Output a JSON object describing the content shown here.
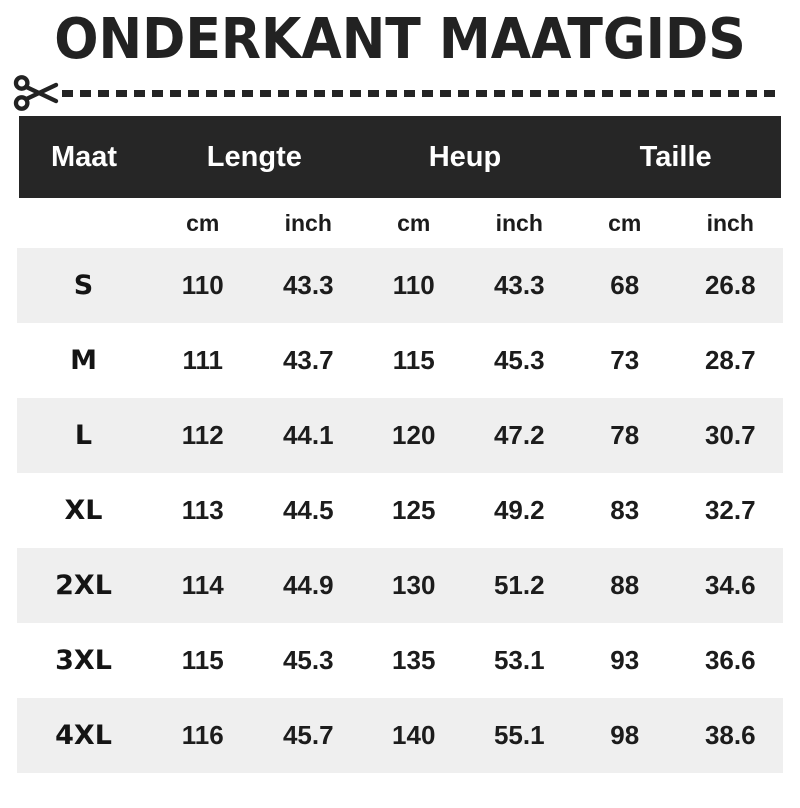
{
  "page": {
    "title": "ONDERKANT MAATGIDS"
  },
  "icons": {
    "scissors": "open-scissors pointing right into dashed cut line"
  },
  "colors": {
    "header_bg": "#262626",
    "header_text": "#ffffff",
    "row_alt_bg": "#efefef",
    "text": "#1c1c1c",
    "title": "#222222",
    "dash": "#242424"
  },
  "table": {
    "groups": [
      {
        "label": "Maat",
        "span": 1
      },
      {
        "label": "Lengte",
        "span": 2
      },
      {
        "label": "Heup",
        "span": 2
      },
      {
        "label": "Taille",
        "span": 2
      }
    ],
    "unit_headers": [
      "cm",
      "inch",
      "cm",
      "inch",
      "cm",
      "inch"
    ],
    "rows": [
      {
        "size": "S",
        "values": [
          "110",
          "43.3",
          "110",
          "43.3",
          "68",
          "26.8"
        ]
      },
      {
        "size": "M",
        "values": [
          "111",
          "43.7",
          "115",
          "45.3",
          "73",
          "28.7"
        ]
      },
      {
        "size": "L",
        "values": [
          "112",
          "44.1",
          "120",
          "47.2",
          "78",
          "30.7"
        ]
      },
      {
        "size": "XL",
        "values": [
          "113",
          "44.5",
          "125",
          "49.2",
          "83",
          "32.7"
        ]
      },
      {
        "size": "2XL",
        "values": [
          "114",
          "44.9",
          "130",
          "51.2",
          "88",
          "34.6"
        ]
      },
      {
        "size": "3XL",
        "values": [
          "115",
          "45.3",
          "135",
          "53.1",
          "93",
          "36.6"
        ]
      },
      {
        "size": "4XL",
        "values": [
          "116",
          "45.7",
          "140",
          "55.1",
          "98",
          "38.6"
        ]
      }
    ]
  },
  "chart_data": {
    "type": "table",
    "title": "ONDERKANT MAATGIDS",
    "columns": [
      "Maat",
      "Lengte cm",
      "Lengte inch",
      "Heup cm",
      "Heup inch",
      "Taille cm",
      "Taille inch"
    ],
    "rows": [
      [
        "S",
        110,
        43.3,
        110,
        43.3,
        68,
        26.8
      ],
      [
        "M",
        111,
        43.7,
        115,
        45.3,
        73,
        28.7
      ],
      [
        "L",
        112,
        44.1,
        120,
        47.2,
        78,
        30.7
      ],
      [
        "XL",
        113,
        44.5,
        125,
        49.2,
        83,
        32.7
      ],
      [
        "2XL",
        114,
        44.9,
        130,
        51.2,
        88,
        34.6
      ],
      [
        "3XL",
        115,
        45.3,
        135,
        53.1,
        93,
        36.6
      ],
      [
        "4XL",
        116,
        45.7,
        140,
        55.1,
        98,
        38.6
      ]
    ]
  }
}
